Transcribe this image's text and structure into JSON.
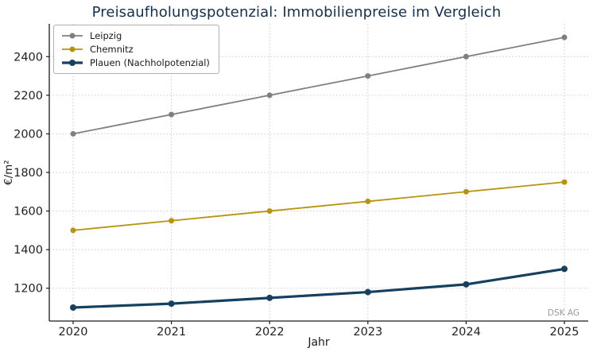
{
  "chart_data": {
    "type": "line",
    "title": "Preisaufholungspotenzial: Immobilienpreise im Vergleich",
    "title_color": "#14304f",
    "xlabel": "Jahr",
    "ylabel": "€/m²",
    "watermark": "DSK AG",
    "categories": [
      "2020",
      "2021",
      "2022",
      "2023",
      "2024",
      "2025"
    ],
    "series": [
      {
        "name": "Leipzig",
        "color": "#7f7f7f",
        "linewidth": 1.8,
        "markersize": 3.5,
        "values": [
          2000,
          2100,
          2200,
          2300,
          2400,
          2500
        ]
      },
      {
        "name": "Chemnitz",
        "color": "#b8930b",
        "linewidth": 1.8,
        "markersize": 3.5,
        "values": [
          1500,
          1550,
          1600,
          1650,
          1700,
          1750
        ]
      },
      {
        "name": "Plauen (Nachholpotenzial)",
        "color": "#16405f",
        "linewidth": 3.2,
        "markersize": 4.0,
        "values": [
          1100,
          1120,
          1150,
          1180,
          1220,
          1300
        ]
      }
    ],
    "yticks": [
      1200,
      1400,
      1600,
      1800,
      2000,
      2200,
      2400
    ],
    "ylim": [
      1030,
      2570
    ],
    "grid": true,
    "grid_color": "#c9c9c9",
    "axis_color": "#1a1a1a",
    "tick_label_color": "#1f1f1f",
    "legend_position": "upper left"
  }
}
